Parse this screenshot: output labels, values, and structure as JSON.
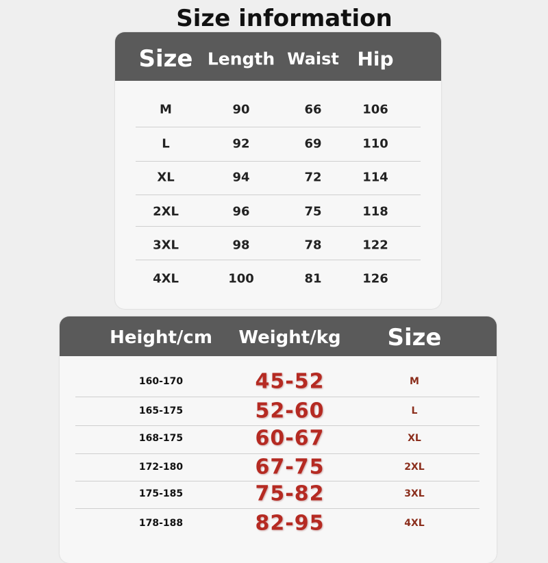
{
  "title": "Size information",
  "size_table": {
    "headers": [
      "Size",
      "Length",
      "Waist",
      "Hip"
    ],
    "rows": [
      [
        "M",
        "90",
        "66",
        "106"
      ],
      [
        "L",
        "92",
        "69",
        "110"
      ],
      [
        "XL",
        "94",
        "72",
        "114"
      ],
      [
        "2XL",
        "96",
        "75",
        "118"
      ],
      [
        "3XL",
        "98",
        "78",
        "122"
      ],
      [
        "4XL",
        "100",
        "81",
        "126"
      ]
    ]
  },
  "fit_table": {
    "headers": [
      "Height/cm",
      "Weight/kg",
      "Size"
    ],
    "rows": [
      [
        "160-170",
        "45-52",
        "M"
      ],
      [
        "165-175",
        "52-60",
        "L"
      ],
      [
        "168-175",
        "60-67",
        "XL"
      ],
      [
        "172-180",
        "67-75",
        "2XL"
      ],
      [
        "175-185",
        "75-82",
        "3XL"
      ],
      [
        "178-188",
        "82-95",
        "4XL"
      ]
    ]
  }
}
